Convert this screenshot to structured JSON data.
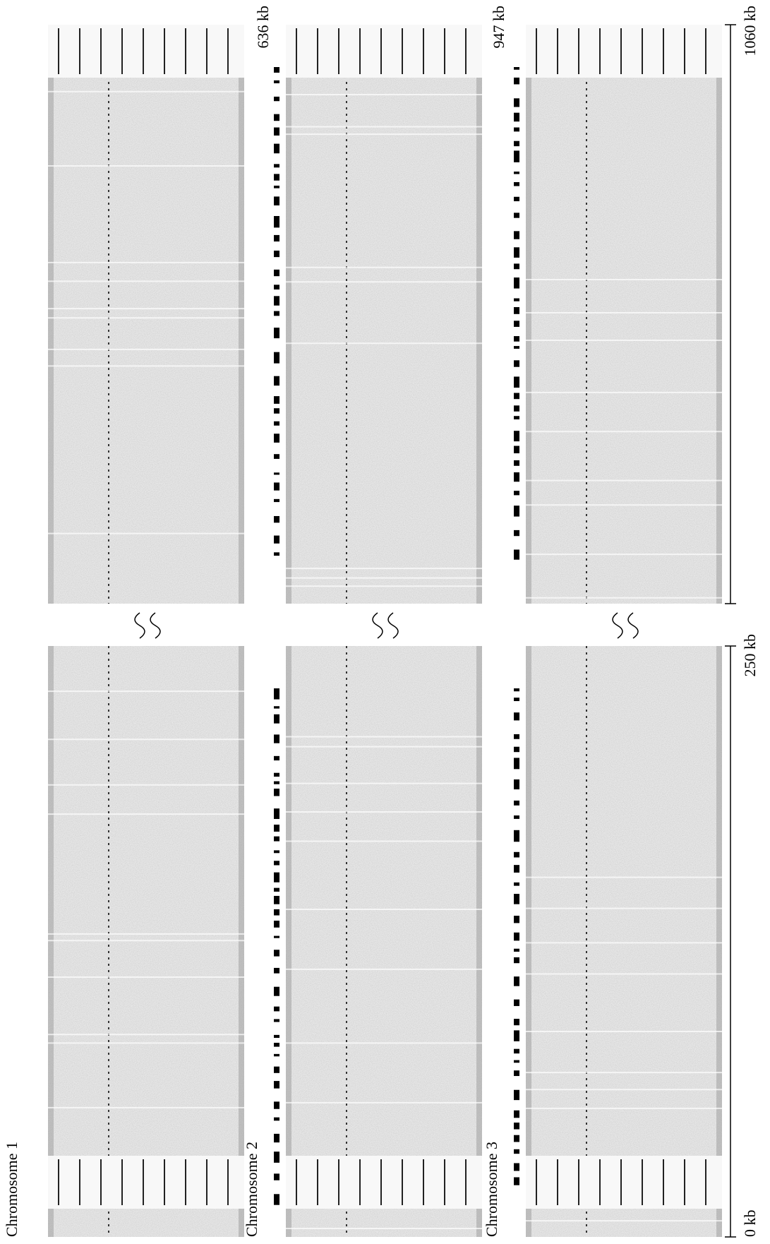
{
  "labels": {
    "chromosomes": [
      "Chromosome 1",
      "Chromosome 2",
      "Chromosome 3"
    ],
    "ends": [
      "636 kb",
      "947 kb",
      "1060 kb"
    ],
    "scale": [
      "250 kb",
      "0 kb"
    ]
  }
}
